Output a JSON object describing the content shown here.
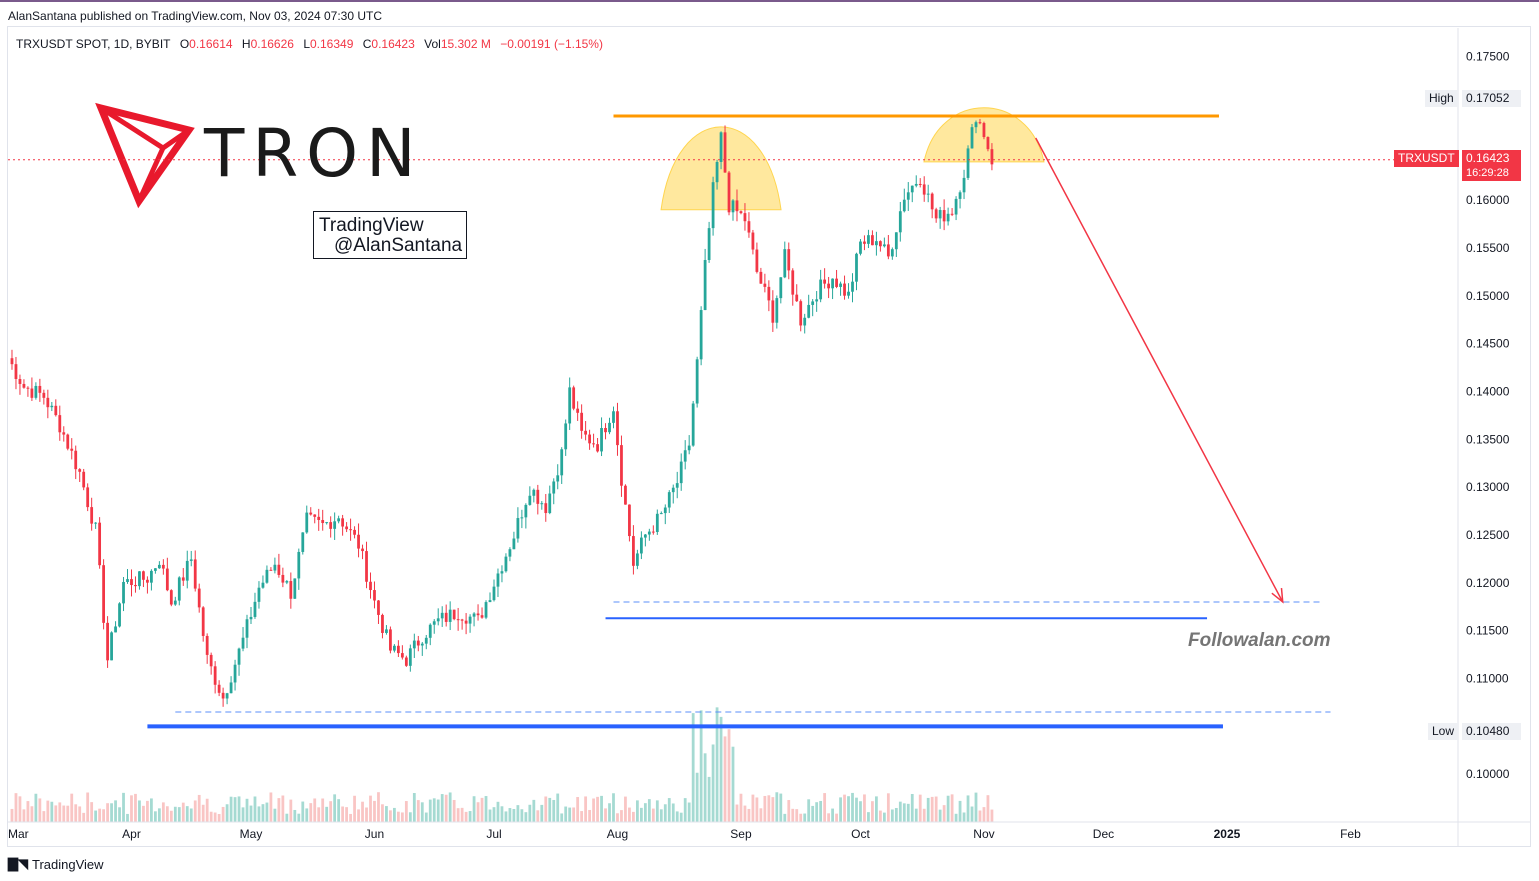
{
  "publisher": "AlanSantana published on TradingView.com, Nov 03, 2024 07:30 UTC",
  "ohlc": {
    "symbol": "TRXUSDT SPOT, 1D, BYBIT",
    "o_label": "O",
    "o": "0.16614",
    "h_label": "H",
    "h": "0.16626",
    "l_label": "L",
    "l": "0.16349",
    "c_label": "C",
    "c": "0.16423",
    "vol_label": "Vol",
    "vol": "15.302 M",
    "change": "−0.00191 (−1.15%)"
  },
  "logo": {
    "word": "TRON"
  },
  "watermark": {
    "line1": "TradingView",
    "line2": "@AlanSantana"
  },
  "site": "Followalan.com",
  "footer": {
    "brand": "TradingView",
    "mark_icon": "tradingview-logo-icon"
  },
  "tags": {
    "high_label": "High",
    "high_value": "0.17052",
    "low_label": "Low",
    "low_value": "0.10480",
    "symbol_label": "TRXUSDT",
    "last_price": "0.16423",
    "countdown": "16:29:28"
  },
  "colors": {
    "up": "#26a69a",
    "down": "#f23645",
    "resistance": "#ff9800",
    "support": "#2962ff",
    "arrow": "#f23645",
    "dome": "#ffd54f"
  },
  "chart_data": {
    "type": "candlestick",
    "x_axis": {
      "ticks": [
        "Mar",
        "Apr",
        "May",
        "Jun",
        "Jul",
        "Aug",
        "Sep",
        "Oct",
        "Nov",
        "Dec",
        "2025",
        "Feb"
      ],
      "range": [
        "2024-03-01",
        "2025-02-28"
      ]
    },
    "y_axis": {
      "ticks": [
        "0.10000",
        "0.10480",
        "0.11000",
        "0.11500",
        "0.12000",
        "0.12500",
        "0.13000",
        "0.13500",
        "0.14000",
        "0.14500",
        "0.15000",
        "0.15500",
        "0.16000",
        "0.16423",
        "0.17052",
        "0.17500"
      ],
      "range": [
        0.095,
        0.178
      ]
    },
    "close_path": [
      [
        "2024-03-01",
        0.1435
      ],
      [
        "2024-03-05",
        0.1405
      ],
      [
        "2024-03-10",
        0.1395
      ],
      [
        "2024-03-14",
        0.1365
      ],
      [
        "2024-03-19",
        0.1315
      ],
      [
        "2024-03-23",
        0.1255
      ],
      [
        "2024-03-26",
        0.112
      ],
      [
        "2024-03-30",
        0.12
      ],
      [
        "2024-04-05",
        0.1205
      ],
      [
        "2024-04-08",
        0.1225
      ],
      [
        "2024-04-11",
        0.118
      ],
      [
        "2024-04-16",
        0.1225
      ],
      [
        "2024-04-20",
        0.112
      ],
      [
        "2024-04-24",
        0.108
      ],
      [
        "2024-04-29",
        0.114
      ],
      [
        "2024-05-03",
        0.1195
      ],
      [
        "2024-05-07",
        0.122
      ],
      [
        "2024-05-11",
        0.119
      ],
      [
        "2024-05-15",
        0.1265
      ],
      [
        "2024-05-19",
        0.126
      ],
      [
        "2024-05-23",
        0.127
      ],
      [
        "2024-05-28",
        0.124
      ],
      [
        "2024-06-01",
        0.118
      ],
      [
        "2024-06-05",
        0.113
      ],
      [
        "2024-06-09",
        0.112
      ],
      [
        "2024-06-13",
        0.1145
      ],
      [
        "2024-06-17",
        0.116
      ],
      [
        "2024-06-22",
        0.117
      ],
      [
        "2024-06-27",
        0.116
      ],
      [
        "2024-07-02",
        0.121
      ],
      [
        "2024-07-06",
        0.125
      ],
      [
        "2024-07-10",
        0.13
      ],
      [
        "2024-07-14",
        0.128
      ],
      [
        "2024-07-18",
        0.1335
      ],
      [
        "2024-07-20",
        0.14
      ],
      [
        "2024-07-23",
        0.1355
      ],
      [
        "2024-07-27",
        0.1345
      ],
      [
        "2024-07-31",
        0.1385
      ],
      [
        "2024-08-02",
        0.131
      ],
      [
        "2024-08-05",
        0.122
      ],
      [
        "2024-08-08",
        0.125
      ],
      [
        "2024-08-12",
        0.127
      ],
      [
        "2024-08-16",
        0.1305
      ],
      [
        "2024-08-19",
        0.1345
      ],
      [
        "2024-08-21",
        0.143
      ],
      [
        "2024-08-23",
        0.153
      ],
      [
        "2024-08-25",
        0.161
      ],
      [
        "2024-08-27",
        0.1665
      ],
      [
        "2024-08-29",
        0.1595
      ],
      [
        "2024-09-02",
        0.158
      ],
      [
        "2024-09-05",
        0.1525
      ],
      [
        "2024-09-09",
        0.148
      ],
      [
        "2024-09-12",
        0.154
      ],
      [
        "2024-09-16",
        0.1475
      ],
      [
        "2024-09-20",
        0.1505
      ],
      [
        "2024-09-24",
        0.152
      ],
      [
        "2024-09-28",
        0.15
      ],
      [
        "2024-10-01",
        0.1555
      ],
      [
        "2024-10-05",
        0.156
      ],
      [
        "2024-10-08",
        0.154
      ],
      [
        "2024-10-12",
        0.1605
      ],
      [
        "2024-10-16",
        0.1625
      ],
      [
        "2024-10-20",
        0.158
      ],
      [
        "2024-10-24",
        0.159
      ],
      [
        "2024-10-27",
        0.163
      ],
      [
        "2024-10-30",
        0.169
      ],
      [
        "2024-11-01",
        0.167
      ],
      [
        "2024-11-03",
        0.16423
      ]
    ],
    "annotations": [
      {
        "kind": "resistance",
        "value": 0.1688,
        "from": "2024-07-31",
        "to": "2024-12-30"
      },
      {
        "kind": "support",
        "value": 0.1163,
        "from": "2024-07-29",
        "to": "2024-12-27"
      },
      {
        "kind": "support",
        "value": 0.105,
        "from": "2024-04-05",
        "to": "2024-12-31"
      },
      {
        "kind": "dashed",
        "value": 0.118,
        "from": "2024-07-31",
        "to": "2025-01-25"
      },
      {
        "kind": "dashed",
        "value": 0.1065,
        "from": "2024-04-12",
        "to": "2025-01-27"
      },
      {
        "kind": "arrow",
        "from": [
          "2024-11-14",
          0.1665
        ],
        "to": [
          "2025-01-15",
          0.118
        ]
      },
      {
        "kind": "dome",
        "center": "2024-08-27",
        "top": 0.1695,
        "base": 0.159
      },
      {
        "kind": "dome",
        "center": "2024-11-01",
        "top": 0.1705,
        "base": 0.164
      }
    ]
  }
}
